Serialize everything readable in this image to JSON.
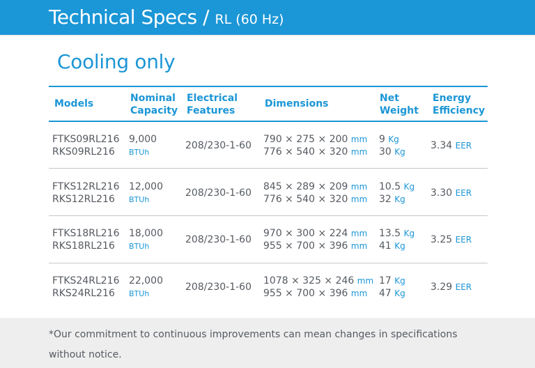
{
  "header": {
    "title": "Technical Specs /",
    "subtitle": "RL (60 Hz)"
  },
  "section_title": "Cooling only",
  "columns": {
    "models": "Models",
    "nominal_capacity": [
      "Nominal",
      "Capacity"
    ],
    "electrical": [
      "Electrical",
      "Features"
    ],
    "dimensions": "Dimensions",
    "net_weight": [
      "Net",
      "Weight"
    ],
    "energy": [
      "Energy",
      "Efficiency"
    ]
  },
  "rows": [
    {
      "model_indoor": "FTKS09RL216",
      "model_outdoor": "RKS09RL216",
      "capacity": "9,000",
      "capacity_unit": "BTUh",
      "electrical": "208/230-1-60",
      "dim_indoor": "790 × 275 × 200",
      "dim_outdoor": "776 × 540 × 320",
      "dim_unit": "mm",
      "weight_indoor": "9",
      "weight_outdoor": "30",
      "weight_unit": "Kg",
      "eer": "3.34",
      "eer_unit": "EER"
    },
    {
      "model_indoor": "FTKS12RL216",
      "model_outdoor": "RKS12RL216",
      "capacity": "12,000",
      "capacity_unit": "BTUh",
      "electrical": "208/230-1-60",
      "dim_indoor": "845 × 289 × 209",
      "dim_outdoor": "776 × 540 × 320",
      "dim_unit": "mm",
      "weight_indoor": "10.5",
      "weight_outdoor": "32",
      "weight_unit": "Kg",
      "eer": "3.30",
      "eer_unit": "EER"
    },
    {
      "model_indoor": "FTKS18RL216",
      "model_outdoor": "RKS18RL216",
      "capacity": "18,000",
      "capacity_unit": "BTUh",
      "electrical": "208/230-1-60",
      "dim_indoor": "970 × 300 × 224",
      "dim_outdoor": "955 × 700 × 396",
      "dim_unit": "mm",
      "weight_indoor": "13.5",
      "weight_outdoor": "41",
      "weight_unit": "Kg",
      "eer": "3.25",
      "eer_unit": "EER"
    },
    {
      "model_indoor": "FTKS24RL216",
      "model_outdoor": "RKS24RL216",
      "capacity": "22,000",
      "capacity_unit": "BTUh",
      "electrical": "208/230-1-60",
      "dim_indoor": "1078 × 325 × 246",
      "dim_outdoor": "955 × 700 × 396",
      "dim_unit": "mm",
      "weight_indoor": "17",
      "weight_outdoor": "47",
      "weight_unit": "Kg",
      "eer": "3.29",
      "eer_unit": "EER"
    }
  ],
  "footer_note": "*Our commitment to continuous improvements can mean changes in specifications without notice.",
  "colors": {
    "accent": "#1b96d6",
    "text": "#555a60",
    "background": "#eeeeef"
  }
}
